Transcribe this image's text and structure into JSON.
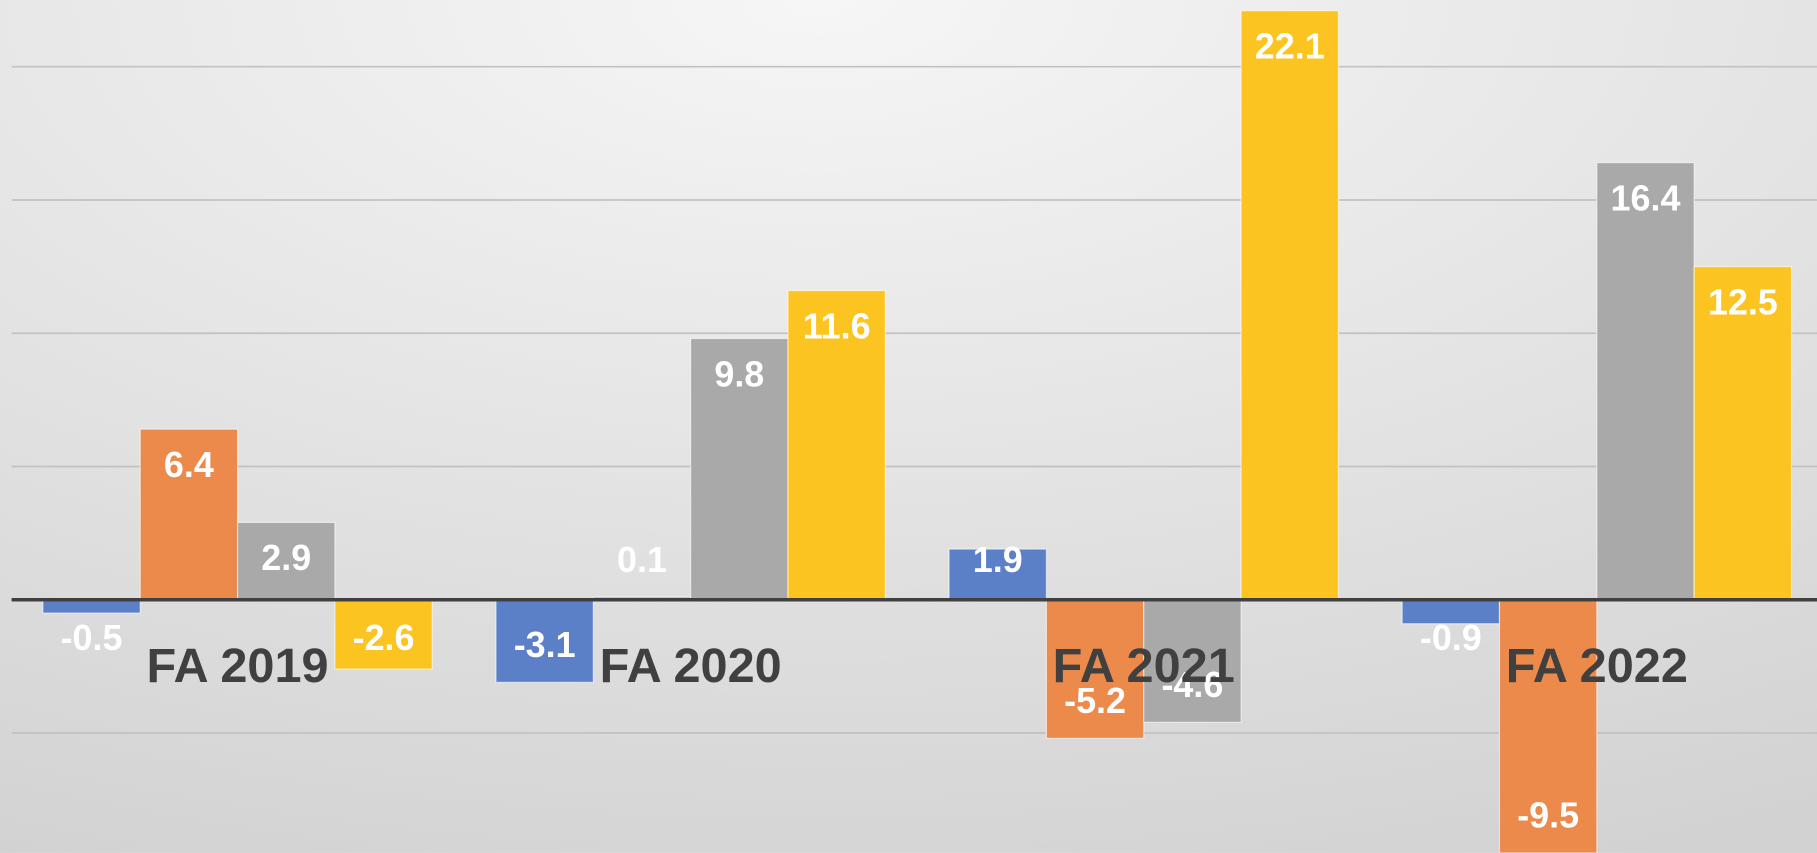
{
  "chart_data": {
    "type": "bar",
    "categories": [
      "FA 2019",
      "FA 2020",
      "FA 2021",
      "FA 2022"
    ],
    "series": [
      {
        "color": "#5b80c8",
        "values": [
          -0.5,
          -3.1,
          1.9,
          -0.9
        ]
      },
      {
        "color": "#eb8a4a",
        "values": [
          6.4,
          0.1,
          -5.2,
          -9.5
        ]
      },
      {
        "color": "#a9a9a9",
        "values": [
          2.9,
          9.8,
          -4.6,
          16.4
        ]
      },
      {
        "color": "#fcc420",
        "values": [
          -2.6,
          11.6,
          22.1,
          12.5
        ]
      }
    ],
    "ylim": [
      -9.5,
      22.5
    ],
    "yticks": [
      -5,
      0,
      5,
      10,
      15,
      20
    ],
    "grid": true
  }
}
